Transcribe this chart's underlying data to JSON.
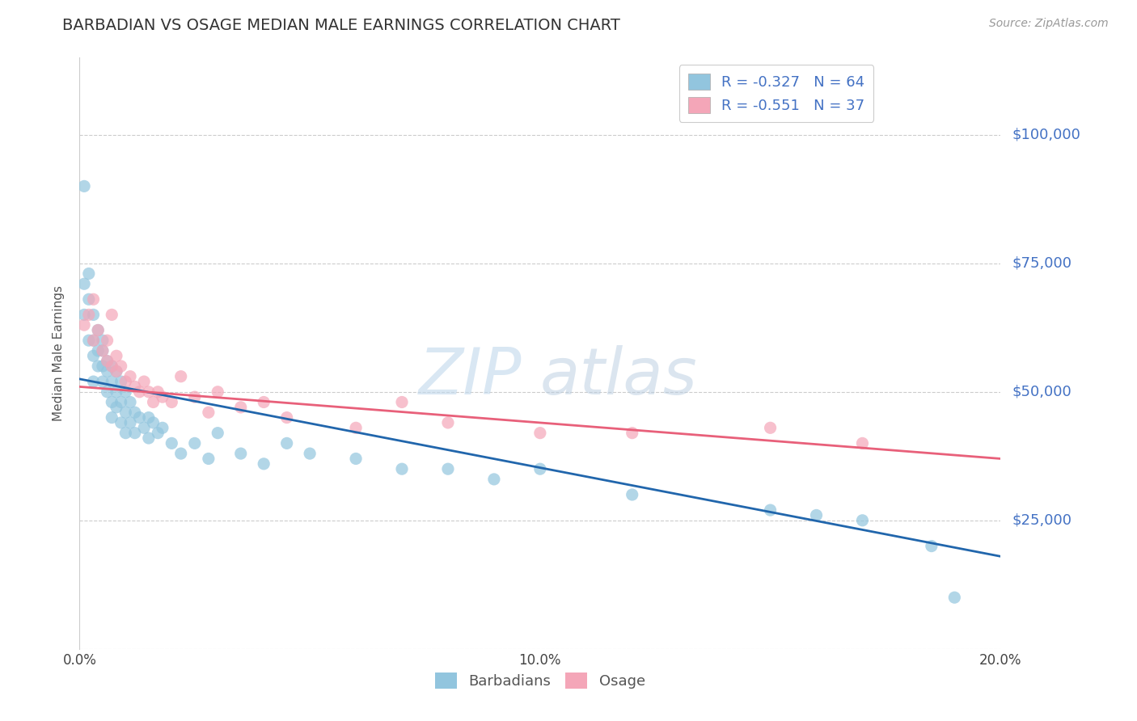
{
  "title": "BARBADIAN VS OSAGE MEDIAN MALE EARNINGS CORRELATION CHART",
  "source": "Source: ZipAtlas.com",
  "ylabel": "Median Male Earnings",
  "xlim": [
    0.0,
    0.2
  ],
  "ylim": [
    0,
    115000
  ],
  "yticks": [
    0,
    25000,
    50000,
    75000,
    100000
  ],
  "ytick_labels": [
    "",
    "$25,000",
    "$50,000",
    "$75,000",
    "$100,000"
  ],
  "xticks": [
    0.0,
    0.05,
    0.1,
    0.15,
    0.2
  ],
  "xtick_labels": [
    "0.0%",
    "",
    "10.0%",
    "",
    "20.0%"
  ],
  "blue_color": "#92c5de",
  "pink_color": "#f4a6b8",
  "blue_line_color": "#2166ac",
  "pink_line_color": "#e8607a",
  "label_color": "#4472c4",
  "r_blue": -0.327,
  "n_blue": 64,
  "r_pink": -0.551,
  "n_pink": 37,
  "legend_label_blue": "Barbadians",
  "legend_label_pink": "Osage",
  "watermark_zip": "ZIP",
  "watermark_atlas": "atlas",
  "blue_line_x0": 0.0,
  "blue_line_y0": 52500,
  "blue_line_x1": 0.2,
  "blue_line_y1": 18000,
  "pink_line_x0": 0.0,
  "pink_line_y0": 51000,
  "pink_line_x1": 0.2,
  "pink_line_y1": 37000,
  "blue_x": [
    0.001,
    0.001,
    0.001,
    0.002,
    0.002,
    0.002,
    0.003,
    0.003,
    0.003,
    0.003,
    0.004,
    0.004,
    0.004,
    0.005,
    0.005,
    0.005,
    0.005,
    0.006,
    0.006,
    0.006,
    0.007,
    0.007,
    0.007,
    0.007,
    0.008,
    0.008,
    0.008,
    0.009,
    0.009,
    0.009,
    0.01,
    0.01,
    0.01,
    0.011,
    0.011,
    0.012,
    0.012,
    0.013,
    0.014,
    0.015,
    0.015,
    0.016,
    0.017,
    0.018,
    0.02,
    0.022,
    0.025,
    0.028,
    0.03,
    0.035,
    0.04,
    0.045,
    0.05,
    0.06,
    0.07,
    0.08,
    0.09,
    0.1,
    0.12,
    0.15,
    0.16,
    0.17,
    0.185,
    0.19
  ],
  "blue_y": [
    90000,
    71000,
    65000,
    73000,
    68000,
    60000,
    65000,
    60000,
    57000,
    52000,
    62000,
    58000,
    55000,
    60000,
    58000,
    55000,
    52000,
    56000,
    54000,
    50000,
    55000,
    52000,
    48000,
    45000,
    54000,
    50000,
    47000,
    52000,
    48000,
    44000,
    50000,
    46000,
    42000,
    48000,
    44000,
    46000,
    42000,
    45000,
    43000,
    45000,
    41000,
    44000,
    42000,
    43000,
    40000,
    38000,
    40000,
    37000,
    42000,
    38000,
    36000,
    40000,
    38000,
    37000,
    35000,
    35000,
    33000,
    35000,
    30000,
    27000,
    26000,
    25000,
    20000,
    10000
  ],
  "pink_x": [
    0.001,
    0.002,
    0.003,
    0.003,
    0.004,
    0.005,
    0.006,
    0.006,
    0.007,
    0.007,
    0.008,
    0.008,
    0.009,
    0.01,
    0.011,
    0.012,
    0.013,
    0.014,
    0.015,
    0.016,
    0.017,
    0.018,
    0.02,
    0.022,
    0.025,
    0.028,
    0.03,
    0.035,
    0.04,
    0.045,
    0.06,
    0.07,
    0.08,
    0.1,
    0.12,
    0.15,
    0.17
  ],
  "pink_y": [
    63000,
    65000,
    68000,
    60000,
    62000,
    58000,
    60000,
    56000,
    65000,
    55000,
    57000,
    54000,
    55000,
    52000,
    53000,
    51000,
    50000,
    52000,
    50000,
    48000,
    50000,
    49000,
    48000,
    53000,
    49000,
    46000,
    50000,
    47000,
    48000,
    45000,
    43000,
    48000,
    44000,
    42000,
    42000,
    43000,
    40000
  ]
}
